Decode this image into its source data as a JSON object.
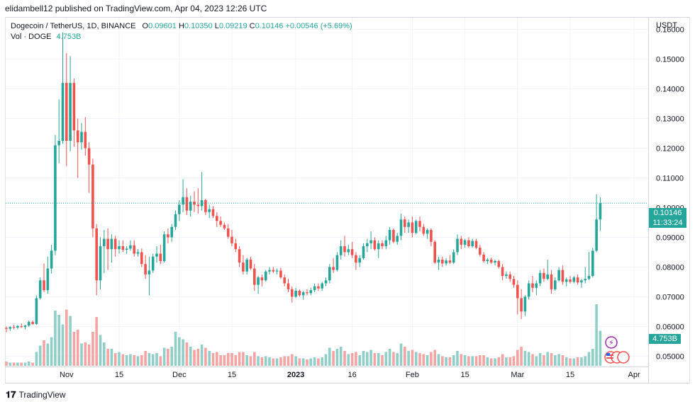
{
  "publisher": "elidambell12 published on TradingView.com, Apr 04, 2023 12:26 UTC",
  "symbol": "Dogecoin / TetherUS, 1D, BINANCE",
  "ohlc": {
    "open_label": "O",
    "open": "0.09601",
    "high_label": "H",
    "high": "0.10350",
    "low_label": "L",
    "low": "0.09219",
    "close_label": "C",
    "close": "0.10146",
    "change": "+0.00546 (+5.69%)"
  },
  "volume": {
    "label": "Vol · DOGE",
    "value": "4.753B"
  },
  "currency": "USDT",
  "last_price": {
    "value": "0.10146",
    "countdown": "11:33:24"
  },
  "footer": {
    "brand": "TradingView"
  },
  "colors": {
    "up": "#26a69a",
    "down": "#ef5350",
    "up_vol": "#8fcfc8",
    "down_vol": "#f4a4a3",
    "grid": "#f0f3fa"
  },
  "chart_data": {
    "type": "candlestick",
    "title": "Dogecoin / TetherUS, 1D, BINANCE",
    "ylabel": "USDT",
    "ylim": [
      0.0465,
      0.1642
    ],
    "y_ticks": [
      "0.16000",
      "0.15000",
      "0.14000",
      "0.13000",
      "0.12000",
      "0.11000",
      "0.10000",
      "0.09000",
      "0.08000",
      "0.07000",
      "0.06000",
      "0.05000"
    ],
    "y_tick_values": [
      0.16,
      0.15,
      0.14,
      0.13,
      0.12,
      0.11,
      0.1,
      0.09,
      0.08,
      0.07,
      0.06,
      0.05
    ],
    "x_ticks": [
      {
        "label": "Nov",
        "index": 16,
        "bold": false
      },
      {
        "label": "15",
        "index": 30,
        "bold": false
      },
      {
        "label": "Dec",
        "index": 46,
        "bold": false
      },
      {
        "label": "15",
        "index": 60,
        "bold": false
      },
      {
        "label": "2023",
        "index": 77,
        "bold": true
      },
      {
        "label": "16",
        "index": 92,
        "bold": false
      },
      {
        "label": "Feb",
        "index": 108,
        "bold": false
      },
      {
        "label": "15",
        "index": 122,
        "bold": false
      },
      {
        "label": "Mar",
        "index": 136,
        "bold": false
      },
      {
        "label": "15",
        "index": 150,
        "bold": false
      },
      {
        "label": "Apr",
        "index": 167,
        "bold": false
      }
    ],
    "vol_max": 6,
    "candles": [
      [
        0.0595,
        0.06,
        0.058,
        0.0592,
        0.4
      ],
      [
        0.0592,
        0.06,
        0.0585,
        0.0598,
        0.3
      ],
      [
        0.0598,
        0.0605,
        0.059,
        0.0596,
        0.3
      ],
      [
        0.0596,
        0.0605,
        0.059,
        0.0601,
        0.3
      ],
      [
        0.0601,
        0.061,
        0.0595,
        0.0598,
        0.3
      ],
      [
        0.0598,
        0.0605,
        0.059,
        0.0603,
        0.3
      ],
      [
        0.0603,
        0.062,
        0.0598,
        0.0615,
        0.4
      ],
      [
        0.0615,
        0.062,
        0.0605,
        0.0608,
        0.3
      ],
      [
        0.0608,
        0.0705,
        0.0605,
        0.0695,
        1.3
      ],
      [
        0.0695,
        0.0765,
        0.069,
        0.0755,
        1.9
      ],
      [
        0.0755,
        0.0812,
        0.0715,
        0.0722,
        2.4
      ],
      [
        0.0722,
        0.0835,
        0.071,
        0.0795,
        2.1
      ],
      [
        0.0795,
        0.0875,
        0.0778,
        0.0855,
        2.7
      ],
      [
        0.0855,
        0.1245,
        0.084,
        0.121,
        5.2
      ],
      [
        0.121,
        0.1365,
        0.115,
        0.1225,
        4.8
      ],
      [
        0.1225,
        0.159,
        0.1215,
        0.142,
        3.9
      ],
      [
        0.142,
        0.152,
        0.114,
        0.1225,
        5.3
      ],
      [
        0.1225,
        0.151,
        0.119,
        0.142,
        4.7
      ],
      [
        0.142,
        0.1435,
        0.1205,
        0.126,
        3.2
      ],
      [
        0.126,
        0.13,
        0.11,
        0.122,
        3.4
      ],
      [
        0.122,
        0.1285,
        0.1195,
        0.1255,
        2.1
      ],
      [
        0.1255,
        0.1305,
        0.1175,
        0.12,
        2.2
      ],
      [
        0.12,
        0.122,
        0.105,
        0.1145,
        2.0
      ],
      [
        0.1145,
        0.1165,
        0.09,
        0.093,
        3.2
      ],
      [
        0.093,
        0.0945,
        0.0705,
        0.0755,
        4.6
      ],
      [
        0.0755,
        0.09,
        0.0725,
        0.087,
        2.9
      ],
      [
        0.087,
        0.0925,
        0.078,
        0.0895,
        2.2
      ],
      [
        0.0895,
        0.093,
        0.079,
        0.086,
        1.6
      ],
      [
        0.086,
        0.091,
        0.0815,
        0.0895,
        1.6
      ],
      [
        0.0895,
        0.0905,
        0.0835,
        0.086,
        1.2
      ],
      [
        0.086,
        0.089,
        0.0845,
        0.087,
        1.3
      ],
      [
        0.087,
        0.089,
        0.085,
        0.0858,
        1.1
      ],
      [
        0.0858,
        0.087,
        0.0845,
        0.0862,
        1.0
      ],
      [
        0.0862,
        0.089,
        0.0855,
        0.0873,
        1.1
      ],
      [
        0.0873,
        0.089,
        0.0835,
        0.0845,
        1.0
      ],
      [
        0.0845,
        0.086,
        0.0835,
        0.085,
        0.9
      ],
      [
        0.085,
        0.0862,
        0.08,
        0.081,
        1.0
      ],
      [
        0.081,
        0.084,
        0.076,
        0.0775,
        1.4
      ],
      [
        0.0775,
        0.0835,
        0.0705,
        0.0788,
        1.2
      ],
      [
        0.0788,
        0.0845,
        0.078,
        0.0835,
        1.1
      ],
      [
        0.0835,
        0.087,
        0.0815,
        0.0845,
        1.2
      ],
      [
        0.0845,
        0.0875,
        0.081,
        0.082,
        0.9
      ],
      [
        0.082,
        0.092,
        0.0815,
        0.091,
        1.7
      ],
      [
        0.091,
        0.093,
        0.088,
        0.09,
        1.6
      ],
      [
        0.09,
        0.0945,
        0.0885,
        0.0935,
        1.8
      ],
      [
        0.0935,
        0.099,
        0.0925,
        0.0978,
        3.2
      ],
      [
        0.0978,
        0.1025,
        0.0955,
        0.101,
        2.7
      ],
      [
        0.101,
        0.1095,
        0.0985,
        0.1035,
        2.5
      ],
      [
        0.1035,
        0.1065,
        0.0975,
        0.099,
        2.2
      ],
      [
        0.099,
        0.104,
        0.097,
        0.102,
        1.8
      ],
      [
        0.102,
        0.1055,
        0.0985,
        0.101,
        1.5
      ],
      [
        0.101,
        0.1065,
        0.098,
        0.1005,
        1.6
      ],
      [
        0.1005,
        0.112,
        0.099,
        0.1025,
        2.0
      ],
      [
        0.1025,
        0.103,
        0.0975,
        0.0985,
        1.7
      ],
      [
        0.0985,
        0.101,
        0.0965,
        0.0995,
        1.4
      ],
      [
        0.0995,
        0.1005,
        0.0965,
        0.0972,
        1.2
      ],
      [
        0.0972,
        0.0985,
        0.0935,
        0.0955,
        1.3
      ],
      [
        0.0955,
        0.097,
        0.0935,
        0.0942,
        1.0
      ],
      [
        0.0942,
        0.095,
        0.0925,
        0.093,
        1.0
      ],
      [
        0.093,
        0.0945,
        0.0895,
        0.0902,
        1.2
      ],
      [
        0.0902,
        0.0925,
        0.087,
        0.088,
        1.2
      ],
      [
        0.088,
        0.0895,
        0.085,
        0.086,
        1.0
      ],
      [
        0.086,
        0.087,
        0.08,
        0.0815,
        1.3
      ],
      [
        0.0815,
        0.084,
        0.0775,
        0.0785,
        1.3
      ],
      [
        0.0785,
        0.083,
        0.0775,
        0.0825,
        1.0
      ],
      [
        0.0825,
        0.0835,
        0.079,
        0.0795,
        0.9
      ],
      [
        0.0795,
        0.081,
        0.072,
        0.074,
        1.3
      ],
      [
        0.074,
        0.077,
        0.071,
        0.0765,
        0.9
      ],
      [
        0.0765,
        0.0775,
        0.0735,
        0.0755,
        0.8
      ],
      [
        0.0755,
        0.079,
        0.075,
        0.0785,
        0.9
      ],
      [
        0.0785,
        0.08,
        0.0775,
        0.079,
        0.8
      ],
      [
        0.079,
        0.08,
        0.078,
        0.0785,
        0.7
      ],
      [
        0.0785,
        0.0795,
        0.0775,
        0.0788,
        0.7
      ],
      [
        0.0788,
        0.0798,
        0.076,
        0.0765,
        0.8
      ],
      [
        0.0765,
        0.0775,
        0.0735,
        0.0745,
        0.9
      ],
      [
        0.0745,
        0.076,
        0.0715,
        0.0725,
        0.9
      ],
      [
        0.0725,
        0.0735,
        0.068,
        0.07,
        1.1
      ],
      [
        0.07,
        0.073,
        0.0695,
        0.072,
        0.9
      ],
      [
        0.072,
        0.0725,
        0.07,
        0.0705,
        0.7
      ],
      [
        0.0705,
        0.072,
        0.069,
        0.0715,
        0.7
      ],
      [
        0.0715,
        0.0725,
        0.0705,
        0.0712,
        0.6
      ],
      [
        0.0712,
        0.073,
        0.0705,
        0.0722,
        0.7
      ],
      [
        0.0722,
        0.0745,
        0.0715,
        0.0735,
        0.8
      ],
      [
        0.0735,
        0.0745,
        0.072,
        0.0728,
        0.7
      ],
      [
        0.0728,
        0.075,
        0.072,
        0.0745,
        0.8
      ],
      [
        0.0745,
        0.0765,
        0.0735,
        0.0755,
        1.1
      ],
      [
        0.0755,
        0.081,
        0.0745,
        0.08,
        1.7
      ],
      [
        0.08,
        0.083,
        0.078,
        0.079,
        1.4
      ],
      [
        0.079,
        0.085,
        0.0785,
        0.084,
        1.6
      ],
      [
        0.084,
        0.089,
        0.0825,
        0.087,
        1.8
      ],
      [
        0.087,
        0.0905,
        0.0835,
        0.085,
        1.4
      ],
      [
        0.085,
        0.0875,
        0.084,
        0.086,
        1.1
      ],
      [
        0.086,
        0.0885,
        0.083,
        0.084,
        1.2
      ],
      [
        0.084,
        0.085,
        0.079,
        0.0815,
        1.3
      ],
      [
        0.0815,
        0.084,
        0.08,
        0.083,
        1.0
      ],
      [
        0.083,
        0.088,
        0.0825,
        0.087,
        1.4
      ],
      [
        0.087,
        0.0895,
        0.085,
        0.088,
        1.3
      ],
      [
        0.088,
        0.092,
        0.086,
        0.089,
        1.5
      ],
      [
        0.089,
        0.09,
        0.0855,
        0.086,
        1.2
      ],
      [
        0.086,
        0.089,
        0.083,
        0.088,
        1.2
      ],
      [
        0.088,
        0.089,
        0.086,
        0.087,
        1.0
      ],
      [
        0.087,
        0.0905,
        0.086,
        0.089,
        1.3
      ],
      [
        0.089,
        0.0935,
        0.0875,
        0.0925,
        1.6
      ],
      [
        0.0925,
        0.093,
        0.088,
        0.0885,
        1.3
      ],
      [
        0.0885,
        0.0915,
        0.0875,
        0.0905,
        1.2
      ],
      [
        0.0905,
        0.098,
        0.089,
        0.096,
        2.1
      ],
      [
        0.096,
        0.097,
        0.0915,
        0.0935,
        1.8
      ],
      [
        0.0935,
        0.096,
        0.0915,
        0.095,
        1.4
      ],
      [
        0.095,
        0.097,
        0.09,
        0.0915,
        1.5
      ],
      [
        0.0915,
        0.096,
        0.091,
        0.0955,
        1.3
      ],
      [
        0.0955,
        0.097,
        0.092,
        0.0935,
        1.2
      ],
      [
        0.0935,
        0.0945,
        0.0905,
        0.0912,
        1.1
      ],
      [
        0.0912,
        0.093,
        0.0895,
        0.0925,
        1.0
      ],
      [
        0.0925,
        0.093,
        0.087,
        0.0885,
        1.3
      ],
      [
        0.0885,
        0.089,
        0.081,
        0.0815,
        1.5
      ],
      [
        0.0815,
        0.0835,
        0.079,
        0.0825,
        1.1
      ],
      [
        0.0825,
        0.0835,
        0.08,
        0.0812,
        0.9
      ],
      [
        0.0812,
        0.083,
        0.0805,
        0.0822,
        0.8
      ],
      [
        0.0822,
        0.084,
        0.081,
        0.0815,
        0.8
      ],
      [
        0.0815,
        0.086,
        0.081,
        0.085,
        1.0
      ],
      [
        0.085,
        0.091,
        0.084,
        0.0895,
        1.4
      ],
      [
        0.0895,
        0.0905,
        0.086,
        0.0875,
        1.1
      ],
      [
        0.0875,
        0.0895,
        0.0865,
        0.089,
        1.0
      ],
      [
        0.089,
        0.09,
        0.0865,
        0.087,
        0.9
      ],
      [
        0.087,
        0.0895,
        0.0865,
        0.0888,
        0.9
      ],
      [
        0.0888,
        0.0895,
        0.086,
        0.0865,
        0.9
      ],
      [
        0.0865,
        0.0875,
        0.0835,
        0.0842,
        1.0
      ],
      [
        0.0842,
        0.085,
        0.0815,
        0.082,
        1.0
      ],
      [
        0.082,
        0.083,
        0.081,
        0.0825,
        0.8
      ],
      [
        0.0825,
        0.0832,
        0.081,
        0.0815,
        0.7
      ],
      [
        0.0815,
        0.0825,
        0.0805,
        0.082,
        0.7
      ],
      [
        0.082,
        0.0825,
        0.0795,
        0.08,
        0.8
      ],
      [
        0.08,
        0.081,
        0.0755,
        0.077,
        1.1
      ],
      [
        0.077,
        0.0785,
        0.076,
        0.0775,
        0.8
      ],
      [
        0.0775,
        0.0785,
        0.075,
        0.076,
        0.8
      ],
      [
        0.076,
        0.077,
        0.073,
        0.074,
        0.9
      ],
      [
        0.074,
        0.0755,
        0.064,
        0.0695,
        1.5
      ],
      [
        0.0695,
        0.0725,
        0.0625,
        0.065,
        1.8
      ],
      [
        0.065,
        0.0705,
        0.0635,
        0.07,
        1.4
      ],
      [
        0.07,
        0.0755,
        0.069,
        0.0745,
        1.3
      ],
      [
        0.0745,
        0.077,
        0.0715,
        0.073,
        1.1
      ],
      [
        0.073,
        0.0755,
        0.0705,
        0.0745,
        0.9
      ],
      [
        0.0745,
        0.079,
        0.0735,
        0.078,
        1.2
      ],
      [
        0.078,
        0.0795,
        0.075,
        0.076,
        1.0
      ],
      [
        0.076,
        0.0825,
        0.0755,
        0.0775,
        1.3
      ],
      [
        0.0775,
        0.079,
        0.071,
        0.0725,
        1.2
      ],
      [
        0.0725,
        0.0765,
        0.072,
        0.0755,
        1.0
      ],
      [
        0.0755,
        0.08,
        0.075,
        0.079,
        1.1
      ],
      [
        0.079,
        0.0805,
        0.074,
        0.075,
        1.0
      ],
      [
        0.075,
        0.0765,
        0.0735,
        0.0758,
        0.8
      ],
      [
        0.0758,
        0.077,
        0.0745,
        0.075,
        0.7
      ],
      [
        0.075,
        0.077,
        0.0745,
        0.0765,
        0.7
      ],
      [
        0.0765,
        0.0775,
        0.074,
        0.0748,
        0.8
      ],
      [
        0.0748,
        0.076,
        0.073,
        0.0755,
        0.8
      ],
      [
        0.0755,
        0.08,
        0.0745,
        0.076,
        0.9
      ],
      [
        0.076,
        0.085,
        0.0755,
        0.077,
        1.3
      ],
      [
        0.077,
        0.0865,
        0.0765,
        0.0855,
        1.6
      ],
      [
        0.0855,
        0.1045,
        0.085,
        0.096,
        5.8
      ],
      [
        0.096,
        0.1035,
        0.0922,
        0.1015,
        3.3
      ]
    ]
  }
}
